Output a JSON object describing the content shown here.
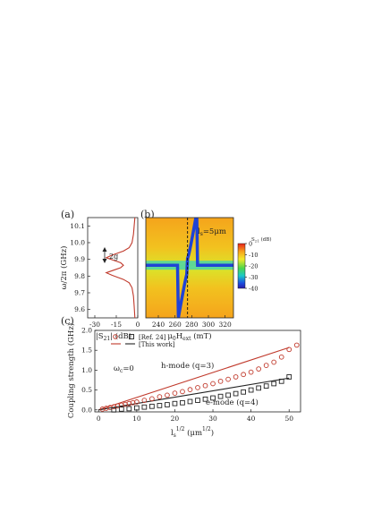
{
  "chart_data": [
    {
      "panel": "(a)",
      "type": "line",
      "xlabel": "|S",
      "xlabel_sub": "21",
      "xlabel_end": "| (dB)",
      "ylabel": "ω/2π (GHz)",
      "xlim": [
        -35,
        0
      ],
      "ylim": [
        9.55,
        10.15
      ],
      "xticks": [
        "-30",
        "-15",
        "0"
      ],
      "xtick_values": [
        -30,
        -15,
        0
      ],
      "yticks": [
        "9.6",
        "9.7",
        "9.8",
        "9.9",
        "10.0",
        "10.1"
      ],
      "ytick_values": [
        9.6,
        9.7,
        9.8,
        9.9,
        10.0,
        10.1
      ],
      "annotation": "2g",
      "series": [
        {
          "color": "#c0392b",
          "points": [
            [
              -2,
              10.15
            ],
            [
              -2.5,
              10.1
            ],
            [
              -3,
              10.05
            ],
            [
              -4,
              10.0
            ],
            [
              -6,
              9.97
            ],
            [
              -10,
              9.95
            ],
            [
              -18,
              9.925
            ],
            [
              -22,
              9.91
            ],
            [
              -17,
              9.895
            ],
            [
              -12,
              9.88
            ],
            [
              -10,
              9.865
            ],
            [
              -12,
              9.85
            ],
            [
              -17,
              9.835
            ],
            [
              -22,
              9.82
            ],
            [
              -18,
              9.805
            ],
            [
              -10,
              9.78
            ],
            [
              -6,
              9.76
            ],
            [
              -4,
              9.73
            ],
            [
              -3,
              9.68
            ],
            [
              -2.5,
              9.62
            ],
            [
              -2,
              9.55
            ]
          ]
        }
      ]
    },
    {
      "panel": "(b)",
      "type": "heatmap",
      "xlabel": "μ",
      "xlabel_sub1": "0",
      "xlabel_mid": "H",
      "xlabel_sub2": "ext",
      "xlabel_end": " (mT)",
      "xlim": [
        225,
        330
      ],
      "ylim": [
        9.55,
        10.15
      ],
      "xticks": [
        "240",
        "260",
        "280",
        "300",
        "320"
      ],
      "xtick_values": [
        240,
        260,
        280,
        300,
        320
      ],
      "annotation": "l",
      "annotation_sub": "s",
      "annotation_end": "=5μm",
      "colorbar": {
        "label": "S",
        "label_sub": "21",
        "label_end": " (dB)",
        "ticks": [
          "0",
          "-10",
          "-20",
          "-30",
          "-40"
        ],
        "tick_values": [
          0,
          -10,
          -20,
          -30,
          -40
        ],
        "range": [
          -40,
          0
        ]
      },
      "resonator_freq": 9.865,
      "crossing_field": 275,
      "dashed_line_x": 275,
      "magnon_slope_GHz_per_mT": 0.028
    },
    {
      "panel": "(c)",
      "type": "scatter",
      "xlabel": "l",
      "xlabel_sub": "s",
      "xlabel_sup": "1/2",
      "xlabel_mid": " (μm",
      "xlabel_sup2": "1/2",
      "xlabel_end": ")",
      "ylabel": "Coupling strength (GHz)",
      "xlim": [
        -1,
        53
      ],
      "ylim": [
        -0.05,
        2.0
      ],
      "xticks": [
        "0",
        "10",
        "20",
        "30",
        "40",
        "50"
      ],
      "xtick_values": [
        0,
        10,
        20,
        30,
        40,
        50
      ],
      "yticks": [
        "0.0",
        "0.5",
        "1.0",
        "1.5",
        "2.0"
      ],
      "ytick_values": [
        0.0,
        0.5,
        1.0,
        1.5,
        2.0
      ],
      "legend": {
        "row1": "[Ref. 24]",
        "row2": "[This work]",
        "placement": "top-left"
      },
      "inset_label": "ω",
      "inset_label_sub": "c",
      "inset_label_end": "=0",
      "series": [
        {
          "name": "h-mode (q=3)",
          "color": "#c0392b",
          "marker": "circle",
          "x": [
            1,
            2,
            3,
            4,
            5,
            6,
            7,
            8,
            9,
            10,
            12,
            14,
            16,
            18,
            20,
            22,
            24,
            26,
            28,
            30,
            32,
            34,
            36,
            38,
            40,
            42,
            44,
            46,
            48,
            50,
            52
          ],
          "y": [
            0.02,
            0.04,
            0.06,
            0.08,
            0.1,
            0.12,
            0.14,
            0.16,
            0.18,
            0.2,
            0.24,
            0.28,
            0.33,
            0.37,
            0.42,
            0.46,
            0.51,
            0.56,
            0.61,
            0.66,
            0.72,
            0.77,
            0.83,
            0.89,
            0.95,
            1.03,
            1.12,
            1.2,
            1.33,
            1.52,
            1.63
          ],
          "fit_x": [
            0,
            50
          ],
          "fit_y": [
            0,
            1.57
          ]
        },
        {
          "name": "e-mode (q=4)",
          "color": "#222222",
          "marker": "square",
          "x": [
            4,
            6,
            8,
            10,
            12,
            14,
            16,
            18,
            20,
            22,
            24,
            26,
            28,
            30,
            32,
            34,
            36,
            38,
            40,
            42,
            44,
            46,
            48,
            50
          ],
          "y": [
            0.0,
            0.02,
            0.03,
            0.05,
            0.07,
            0.09,
            0.11,
            0.13,
            0.16,
            0.18,
            0.21,
            0.24,
            0.27,
            0.3,
            0.34,
            0.37,
            0.41,
            0.45,
            0.5,
            0.55,
            0.6,
            0.66,
            0.72,
            0.83
          ],
          "fit_x": [
            0,
            50
          ],
          "fit_y": [
            0,
            0.8
          ]
        }
      ]
    }
  ]
}
